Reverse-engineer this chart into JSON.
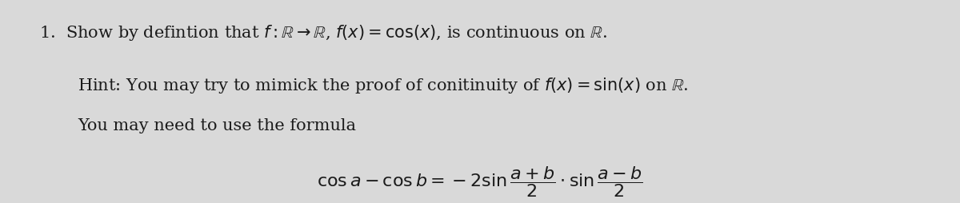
{
  "background_color": "#d9d9d9",
  "fig_width": 12.0,
  "fig_height": 2.55,
  "dpi": 100,
  "line1": "1.  Show by defintion that $f: \\mathbb{R} \\to \\mathbb{R}$, $f(x) = \\cos(x)$, is continuous on $\\mathbb{R}$.",
  "line2": "Hint: You may try to mimick the proof of conitinuity of $f(x) = \\sin(x)$ on $\\mathbb{R}$.",
  "line3": "You may need to use the formula",
  "formula": "$\\cos a - \\cos b = -2\\sin\\dfrac{a+b}{2} \\cdot \\sin\\dfrac{a-b}{2}$",
  "font_size_main": 15,
  "font_size_formula": 16,
  "text_color": "#1a1a1a",
  "font_family": "serif"
}
